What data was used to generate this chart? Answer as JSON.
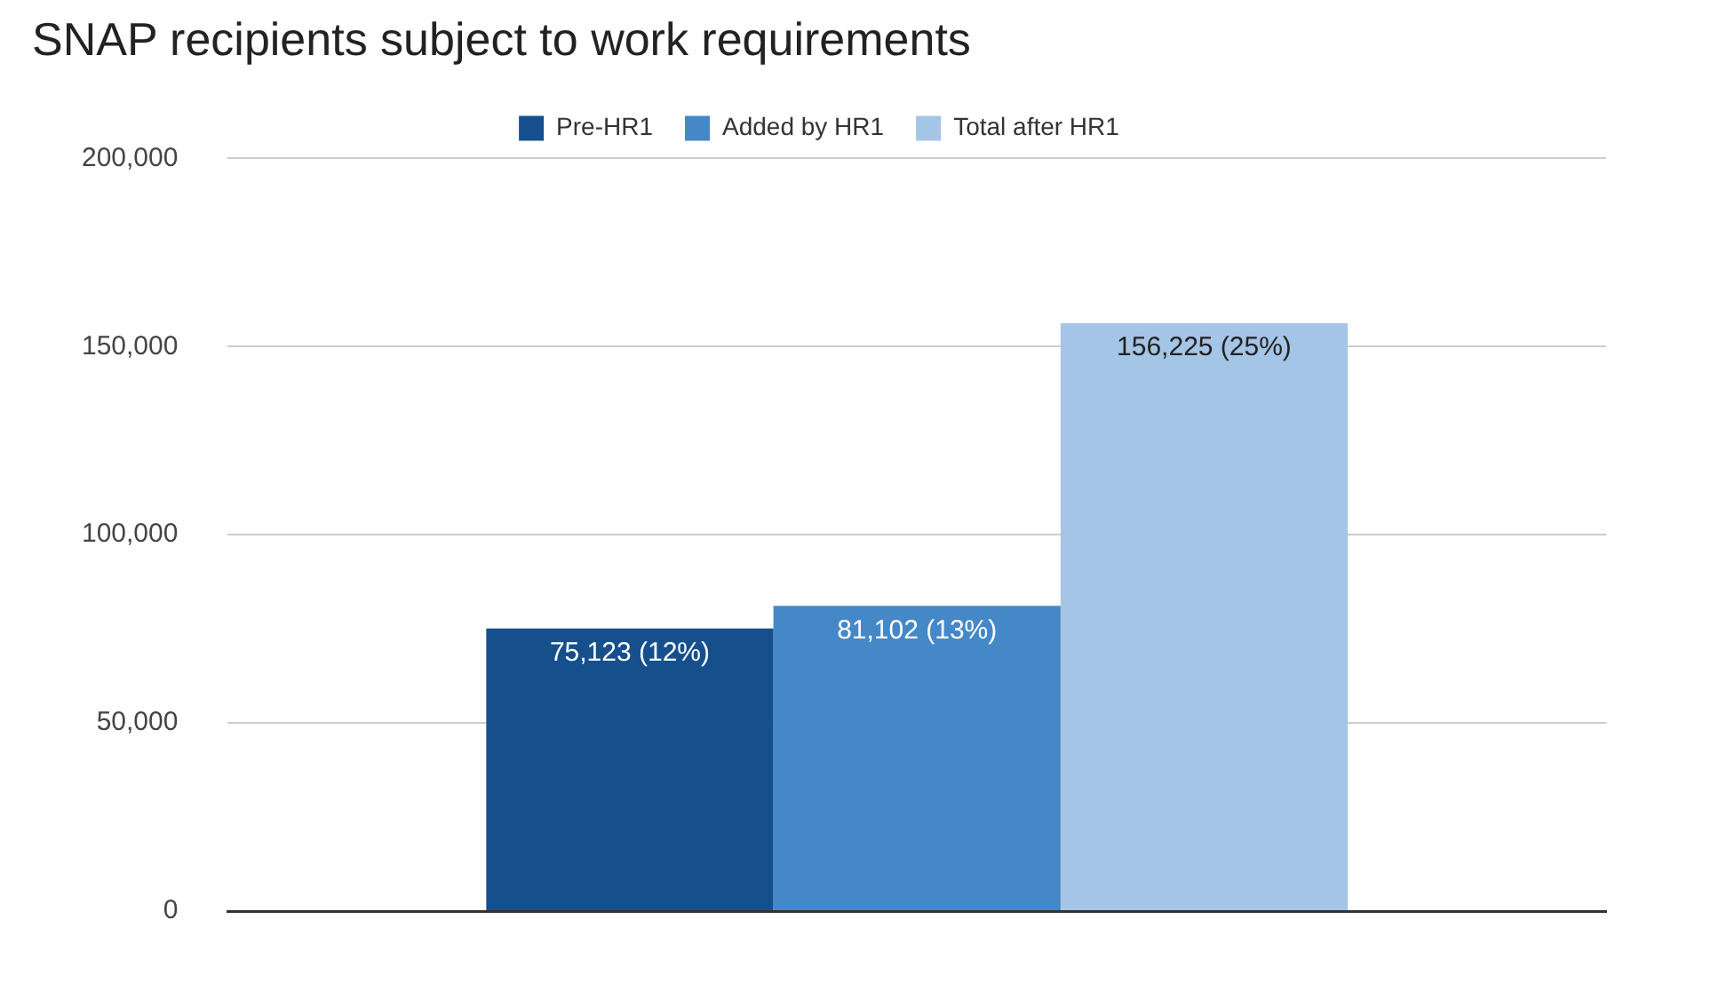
{
  "chart_data": {
    "type": "bar",
    "title": "SNAP recipients subject to work requirements",
    "categories": [
      null
    ],
    "series": [
      {
        "name": "Pre-HR1",
        "color": "#15508c",
        "values": [
          75123
        ],
        "value_labels": [
          "75,123 (12%)"
        ]
      },
      {
        "name": "Added by HR1",
        "color": "#4588c7",
        "values": [
          81102
        ],
        "value_labels": [
          "81,102 (13%)"
        ]
      },
      {
        "name": "Total after HR1",
        "color": "#a4c5e5",
        "values": [
          156225
        ],
        "value_labels": [
          "156,225 (25%)"
        ]
      }
    ],
    "ylim": [
      0,
      200000
    ],
    "yticks": [
      {
        "value": 0,
        "label": "0"
      },
      {
        "value": 50000,
        "label": "50,000"
      },
      {
        "value": 100000,
        "label": "100,000"
      },
      {
        "value": 150000,
        "label": "150,000"
      },
      {
        "value": 200000,
        "label": "200,000"
      }
    ],
    "grid": "y",
    "legend": "top"
  }
}
